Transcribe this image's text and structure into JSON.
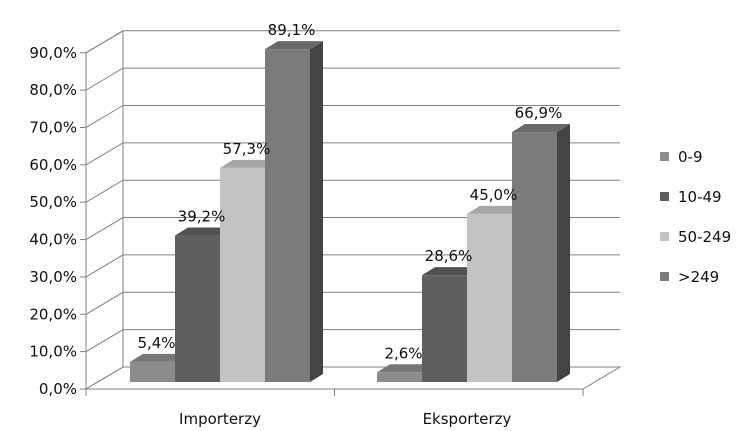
{
  "chart_data": {
    "type": "bar",
    "style": "3d-clustered-column",
    "categories": [
      "Importerzy",
      "Eksporterzy"
    ],
    "series": [
      {
        "name": "0-9",
        "values": [
          5.4,
          2.6
        ],
        "labels": [
          "5,4%",
          "2,6%"
        ],
        "color": "#8c8c8c"
      },
      {
        "name": "10-49",
        "values": [
          39.2,
          28.6
        ],
        "labels": [
          "39,2%",
          "28,6%"
        ],
        "color": "#5f5f5f"
      },
      {
        "name": "50-249",
        "values": [
          57.3,
          45.0
        ],
        "labels": [
          "57,3%",
          "45,0%"
        ],
        "color": "#c3c3c3"
      },
      {
        "name": ">249",
        "values": [
          89.1,
          66.9
        ],
        "labels": [
          "89,1%",
          "66,9%"
        ],
        "color": "#7b7b7b"
      }
    ],
    "y_ticks": [
      "0,0%",
      "10,0%",
      "20,0%",
      "30,0%",
      "40,0%",
      "50,0%",
      "60,0%",
      "70,0%",
      "80,0%",
      "90,0%"
    ],
    "ylim": [
      0,
      90
    ],
    "grid": true,
    "legend_position": "right",
    "title": "",
    "xlabel": "",
    "ylabel": ""
  }
}
